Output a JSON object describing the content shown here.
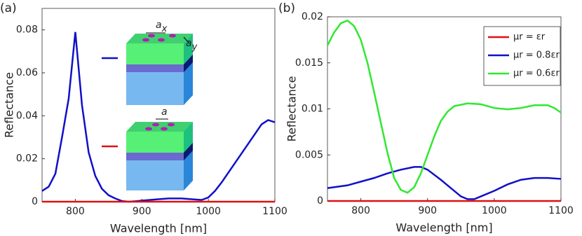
{
  "chart_data": [
    {
      "type": "line",
      "panel_label": "(a)",
      "x_label": "Wavelength [nm]",
      "y_label": "Reflectance",
      "xlim": [
        750,
        1100
      ],
      "xticks": [
        800,
        900,
        1000,
        1100
      ],
      "ylim": [
        0,
        0.09
      ],
      "yticks": [
        0,
        0.02,
        0.04,
        0.06,
        0.08
      ],
      "annotations": [
        {
          "text": "a",
          "subscript": "x"
        },
        {
          "text": "a",
          "subscript": "y"
        },
        {
          "text": "a"
        }
      ],
      "series": [
        {
          "color": "#1010c8",
          "x": [
            750,
            760,
            770,
            780,
            790,
            800,
            810,
            820,
            830,
            840,
            850,
            860,
            870,
            880,
            890,
            900,
            920,
            940,
            960,
            980,
            990,
            1000,
            1010,
            1020,
            1040,
            1060,
            1080,
            1090,
            1100
          ],
          "values": [
            0.005,
            0.007,
            0.013,
            0.03,
            0.048,
            0.079,
            0.045,
            0.023,
            0.012,
            0.006,
            0.003,
            0.0015,
            0.0003,
            0,
            0.0002,
            0.0005,
            0.001,
            0.0015,
            0.0015,
            0.001,
            0.0008,
            0.002,
            0.005,
            0.009,
            0.018,
            0.027,
            0.036,
            0.038,
            0.037
          ]
        },
        {
          "color": "#e01010",
          "x": [
            750,
            1100
          ],
          "values": [
            0,
            0
          ]
        }
      ]
    },
    {
      "type": "line",
      "panel_label": "(b)",
      "x_label": "Wavelength [nm]",
      "y_label": "Reflectance",
      "xlim": [
        750,
        1100
      ],
      "xticks": [
        800,
        900,
        1000,
        1100
      ],
      "ylim": [
        0,
        0.02
      ],
      "yticks": [
        0,
        0.005,
        0.01,
        0.015,
        0.02
      ],
      "legend": "upper right",
      "series": [
        {
          "name": "μr = εr",
          "color": "#e01010",
          "x": [
            750,
            1100
          ],
          "values": [
            0,
            0
          ]
        },
        {
          "name": "μr = 0.8εr",
          "color": "#1010c8",
          "x": [
            750,
            780,
            800,
            820,
            840,
            860,
            880,
            890,
            900,
            920,
            940,
            950,
            960,
            970,
            980,
            1000,
            1020,
            1040,
            1060,
            1080,
            1100
          ],
          "values": [
            0.0014,
            0.0017,
            0.0021,
            0.0025,
            0.003,
            0.0034,
            0.0037,
            0.0037,
            0.0034,
            0.0023,
            0.0011,
            0.0005,
            0.0002,
            0.0002,
            0.0005,
            0.0011,
            0.0018,
            0.0023,
            0.0025,
            0.0025,
            0.0024
          ]
        },
        {
          "name": "μr = 0.6εr",
          "color": "#30e830",
          "x": [
            750,
            760,
            770,
            780,
            790,
            800,
            810,
            820,
            830,
            840,
            850,
            860,
            870,
            880,
            890,
            900,
            910,
            920,
            930,
            940,
            960,
            980,
            1000,
            1020,
            1040,
            1060,
            1080,
            1090,
            1100
          ],
          "values": [
            0.0169,
            0.0183,
            0.0193,
            0.0196,
            0.019,
            0.0175,
            0.015,
            0.0118,
            0.0085,
            0.0052,
            0.0025,
            0.0012,
            0.0009,
            0.0015,
            0.003,
            0.005,
            0.007,
            0.0087,
            0.0097,
            0.0103,
            0.0106,
            0.0105,
            0.0101,
            0.00995,
            0.0101,
            0.0104,
            0.0104,
            0.0101,
            0.0096
          ]
        }
      ]
    }
  ]
}
